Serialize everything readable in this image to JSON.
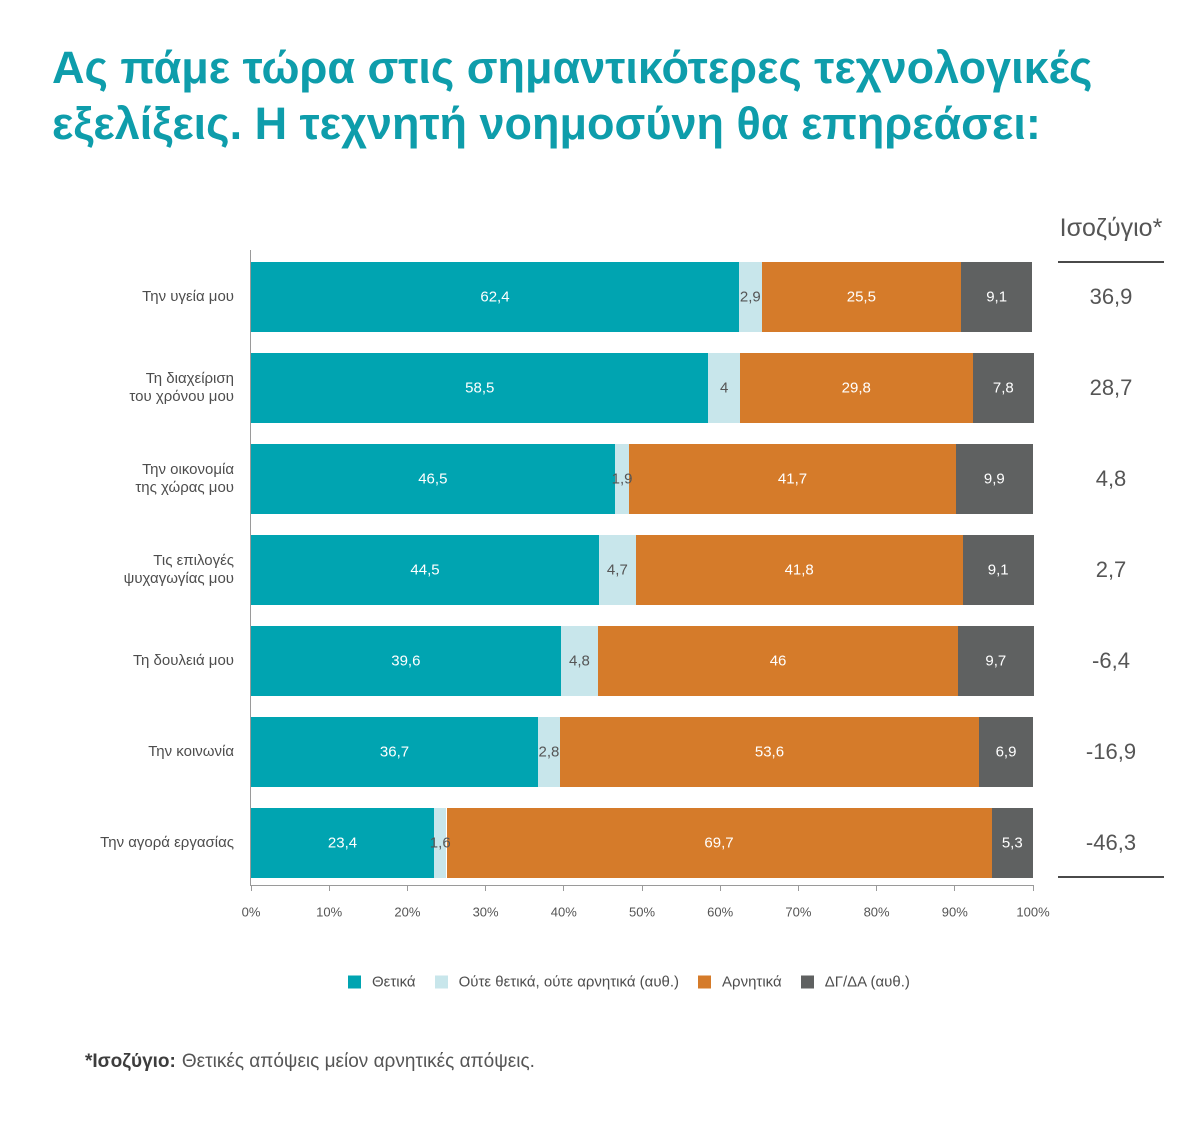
{
  "colors": {
    "accent": "#0E9DAB"
  },
  "chart_data": {
    "type": "bar",
    "orientation": "horizontal",
    "stacked": true,
    "title": "Ας πάμε τώρα στις σημαντικότερες τεχνολογικές εξελίξεις. Η τεχνητή νοημοσύνη θα επηρεάσει:",
    "categories": [
      "Την υγεία μου",
      "Τη διαχείριση\nτου χρόνου μου",
      "Την οικονομία\nτης χώρας μου",
      "Τις επιλογές\nψυχαγωγίας μου",
      "Τη δουλειά μου",
      "Την κοινωνία",
      "Την αγορά εργασίας"
    ],
    "series": [
      {
        "name": "Θετικά",
        "color": "#00A4B1",
        "label_color": "#FFFFFF",
        "values": [
          62.4,
          58.5,
          46.5,
          44.5,
          39.6,
          36.7,
          23.4
        ]
      },
      {
        "name": "Ούτε θετικά, ούτε αρνητικά (αυθ.)",
        "color": "#C8E6EB",
        "label_color": "#555555",
        "values": [
          2.9,
          4,
          1.9,
          4.7,
          4.8,
          2.8,
          1.6
        ]
      },
      {
        "name": "Αρνητικά",
        "color": "#D57B2A",
        "label_color": "#FFFFFF",
        "values": [
          25.5,
          29.8,
          41.7,
          41.8,
          46,
          53.6,
          69.7
        ]
      },
      {
        "name": "ΔΓ/ΔΑ (αυθ.)",
        "color": "#5F6161",
        "label_color": "#FFFFFF",
        "values": [
          9.1,
          7.8,
          9.9,
          9.1,
          9.7,
          6.9,
          5.3
        ]
      }
    ],
    "xlim": [
      0,
      100
    ],
    "xticks": [
      "0%",
      "10%",
      "20%",
      "30%",
      "40%",
      "50%",
      "60%",
      "70%",
      "80%",
      "90%",
      "100%"
    ],
    "grid": false,
    "legend": "bottom",
    "balance": {
      "header": "Ισοζύγιο*",
      "values": [
        36.9,
        28.7,
        4.8,
        2.7,
        -6.4,
        -16.9,
        -46.3
      ]
    }
  },
  "footnote": {
    "term": "*Ισοζύγιο:",
    "text": "Θετικές απόψεις μείον αρνητικές απόψεις."
  }
}
